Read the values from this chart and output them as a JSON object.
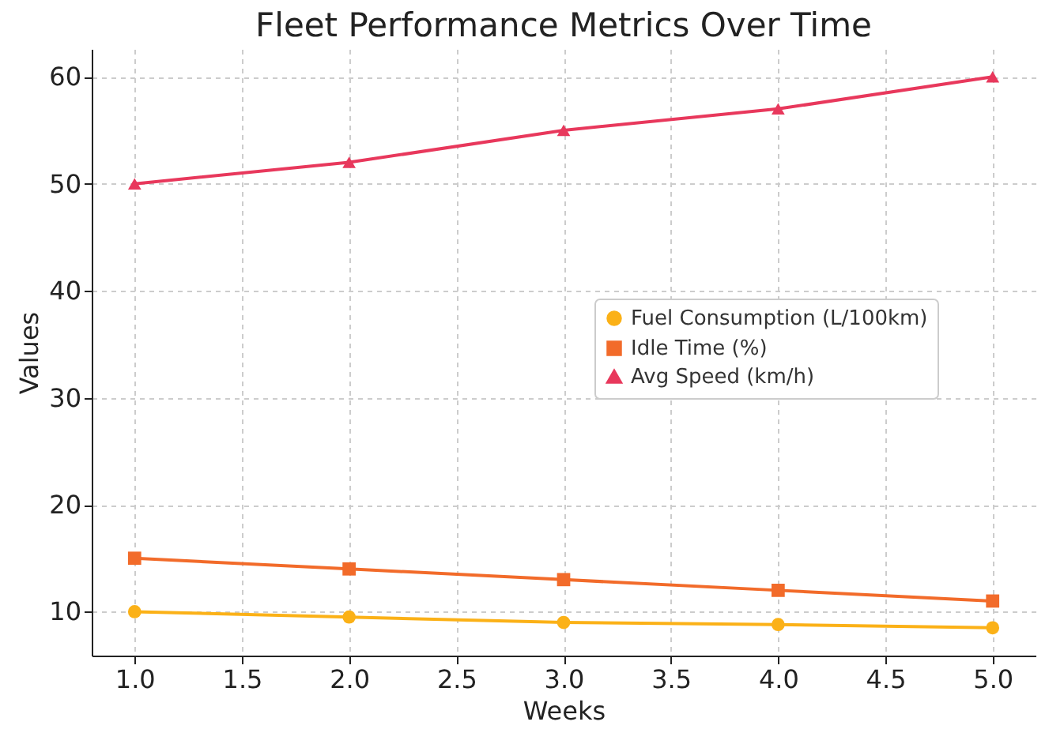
{
  "chart_data": {
    "type": "line",
    "title": "Fleet Performance Metrics Over Time",
    "xlabel": "Weeks",
    "ylabel": "Values",
    "x": [
      1.0,
      2.0,
      3.0,
      4.0,
      5.0
    ],
    "series": [
      {
        "name": "Fuel Consumption (L/100km)",
        "color": "#fbb117",
        "marker": "circle",
        "values": [
          10,
          9.5,
          9.0,
          8.8,
          8.5
        ]
      },
      {
        "name": "Idle Time (%)",
        "color": "#f26b2a",
        "marker": "square",
        "values": [
          15,
          14,
          13,
          12,
          11
        ]
      },
      {
        "name": "Avg Speed (km/h)",
        "color": "#e8385c",
        "marker": "triangle",
        "values": [
          50,
          52,
          55,
          57,
          60
        ]
      }
    ],
    "xlim": [
      0.8,
      5.2
    ],
    "xticks": [
      {
        "value": 1,
        "label": "1.0"
      },
      {
        "value": 1.5,
        "label": "1.5"
      },
      {
        "value": 2,
        "label": "2.0"
      },
      {
        "value": 2.5,
        "label": "2.5"
      },
      {
        "value": 3,
        "label": "3.0"
      },
      {
        "value": 3.5,
        "label": "3.5"
      },
      {
        "value": 4,
        "label": "4.0"
      },
      {
        "value": 4.5,
        "label": "4.5"
      },
      {
        "value": 5,
        "label": "5.0"
      }
    ],
    "ylim": [
      5.9,
      62.6
    ],
    "yticks": [
      10,
      20,
      30,
      40,
      50,
      60
    ],
    "grid": true,
    "legend": "right",
    "line_style": "solid"
  }
}
